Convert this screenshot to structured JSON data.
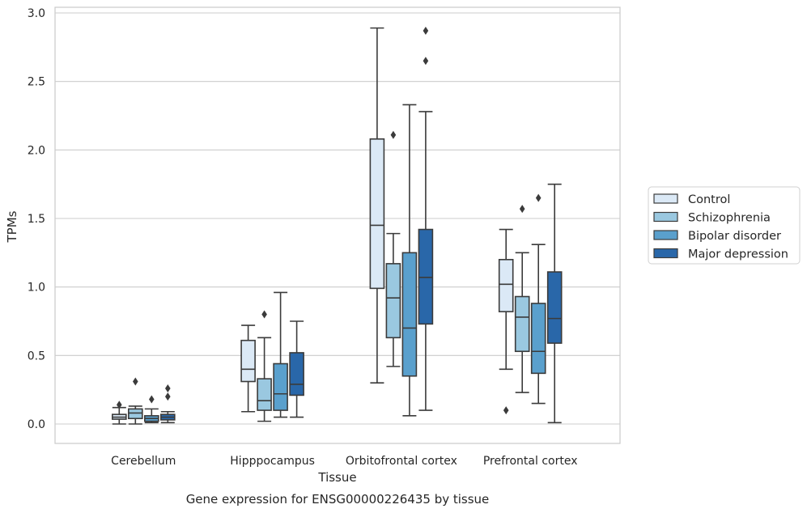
{
  "chart_data": {
    "type": "box",
    "title": "",
    "caption": "Gene expression for ENSG00000226435 by tissue",
    "xlabel": "Tissue",
    "ylabel": "TPMs",
    "ylim": [
      -0.14,
      3.04
    ],
    "yticks": [
      "0.0",
      "0.5",
      "1.0",
      "1.5",
      "2.0",
      "2.5",
      "3.0"
    ],
    "grid": "horizontal",
    "legend_position": "right",
    "categories": [
      "Cerebellum",
      "Hipppocampus",
      "Orbitofrontal cortex",
      "Prefrontal cortex"
    ],
    "series": [
      {
        "name": "Control",
        "color": "#dbe9f6",
        "boxes": [
          {
            "whisker_low": 0.0,
            "q1": 0.035,
            "median": 0.05,
            "q3": 0.07,
            "whisker_high": 0.12,
            "outliers": [
              0.14
            ]
          },
          {
            "whisker_low": 0.09,
            "q1": 0.31,
            "median": 0.4,
            "q3": 0.61,
            "whisker_high": 0.72,
            "outliers": []
          },
          {
            "whisker_low": 0.3,
            "q1": 0.99,
            "median": 1.45,
            "q3": 2.08,
            "whisker_high": 2.89,
            "outliers": []
          },
          {
            "whisker_low": 0.4,
            "q1": 0.82,
            "median": 1.02,
            "q3": 1.2,
            "whisker_high": 1.42,
            "outliers": [
              0.1
            ]
          }
        ]
      },
      {
        "name": "Schizophrenia",
        "color": "#9ac8e0",
        "boxes": [
          {
            "whisker_low": 0.0,
            "q1": 0.04,
            "median": 0.08,
            "q3": 0.11,
            "whisker_high": 0.13,
            "outliers": [
              0.31
            ]
          },
          {
            "whisker_low": 0.02,
            "q1": 0.1,
            "median": 0.17,
            "q3": 0.33,
            "whisker_high": 0.63,
            "outliers": [
              0.8
            ]
          },
          {
            "whisker_low": 0.42,
            "q1": 0.63,
            "median": 0.92,
            "q3": 1.17,
            "whisker_high": 1.39,
            "outliers": [
              2.11
            ]
          },
          {
            "whisker_low": 0.23,
            "q1": 0.53,
            "median": 0.78,
            "q3": 0.93,
            "whisker_high": 1.25,
            "outliers": [
              1.57
            ]
          }
        ]
      },
      {
        "name": "Bipolar disorder",
        "color": "#5aa0cd",
        "boxes": [
          {
            "whisker_low": 0.01,
            "q1": 0.02,
            "median": 0.04,
            "q3": 0.06,
            "whisker_high": 0.11,
            "outliers": [
              0.18
            ]
          },
          {
            "whisker_low": 0.05,
            "q1": 0.1,
            "median": 0.22,
            "q3": 0.44,
            "whisker_high": 0.96,
            "outliers": []
          },
          {
            "whisker_low": 0.06,
            "q1": 0.35,
            "median": 0.7,
            "q3": 1.25,
            "whisker_high": 2.33,
            "outliers": []
          },
          {
            "whisker_low": 0.15,
            "q1": 0.37,
            "median": 0.53,
            "q3": 0.88,
            "whisker_high": 1.31,
            "outliers": [
              1.65
            ]
          }
        ]
      },
      {
        "name": "Major depression",
        "color": "#2967a9",
        "boxes": [
          {
            "whisker_low": 0.01,
            "q1": 0.03,
            "median": 0.05,
            "q3": 0.07,
            "whisker_high": 0.09,
            "outliers": [
              0.2,
              0.26
            ]
          },
          {
            "whisker_low": 0.05,
            "q1": 0.21,
            "median": 0.29,
            "q3": 0.52,
            "whisker_high": 0.75,
            "outliers": []
          },
          {
            "whisker_low": 0.1,
            "q1": 0.73,
            "median": 1.07,
            "q3": 1.42,
            "whisker_high": 2.28,
            "outliers": [
              2.65,
              2.87
            ]
          },
          {
            "whisker_low": 0.01,
            "q1": 0.59,
            "median": 0.77,
            "q3": 1.11,
            "whisker_high": 1.75,
            "outliers": []
          }
        ]
      }
    ]
  }
}
